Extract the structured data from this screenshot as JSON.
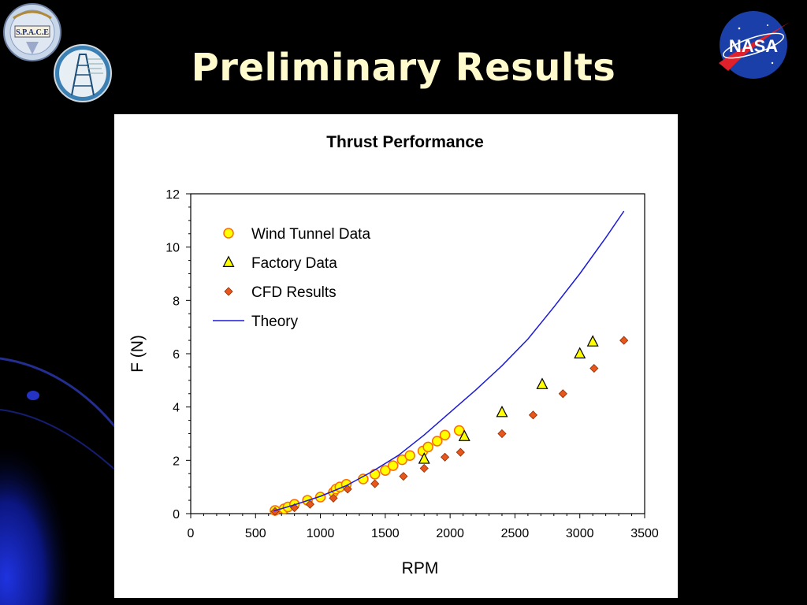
{
  "slide": {
    "title": "Preliminary Results",
    "logos": {
      "left_top": {
        "name": "space-seal",
        "text": "S.P.A.C.E"
      },
      "left_bottom": {
        "name": "tower-seal"
      },
      "right": {
        "name": "nasa-meatball",
        "text": "NASA"
      }
    },
    "colors": {
      "title": "#fffbcc",
      "background": "#000000",
      "swoosh": "#1a2ccf"
    }
  },
  "chart_data": {
    "type": "scatter",
    "title": "Thrust Performance",
    "xlabel": "RPM",
    "ylabel": "F (N)",
    "xlim": [
      0,
      3500
    ],
    "ylim": [
      0,
      12
    ],
    "xticks": [
      0,
      500,
      1000,
      1500,
      2000,
      2500,
      3000,
      3500
    ],
    "yticks": [
      0,
      2,
      4,
      6,
      8,
      10,
      12
    ],
    "grid": false,
    "legend_position": "top-left",
    "series": [
      {
        "name": "Wind Tunnel Data",
        "marker": "circle",
        "fill": "#ffff00",
        "stroke": "#ff6a00",
        "x": [
          650,
          720,
          750,
          800,
          900,
          1000,
          1100,
          1120,
          1150,
          1200,
          1330,
          1420,
          1500,
          1560,
          1630,
          1690,
          1790,
          1830,
          1900,
          1960,
          2070
        ],
        "y": [
          0.12,
          0.18,
          0.25,
          0.35,
          0.5,
          0.62,
          0.8,
          0.92,
          1.0,
          1.1,
          1.3,
          1.48,
          1.62,
          1.8,
          2.02,
          2.18,
          2.35,
          2.5,
          2.72,
          2.95,
          3.12
        ]
      },
      {
        "name": "Factory Data",
        "marker": "triangle",
        "fill": "#ffff00",
        "stroke": "#000000",
        "x": [
          1800,
          2110,
          2400,
          2710,
          3000,
          3100
        ],
        "y": [
          2.05,
          2.9,
          3.8,
          4.85,
          6.0,
          6.45
        ]
      },
      {
        "name": "CFD Results",
        "marker": "diamond",
        "fill": "#e8561c",
        "stroke": "#8a2d00",
        "x": [
          650,
          800,
          920,
          1100,
          1210,
          1420,
          1640,
          1800,
          1960,
          2080,
          2400,
          2640,
          2870,
          3110,
          3340
        ],
        "y": [
          0.08,
          0.22,
          0.35,
          0.58,
          0.92,
          1.12,
          1.4,
          1.7,
          2.12,
          2.3,
          3.0,
          3.7,
          4.5,
          5.45,
          6.5
        ]
      },
      {
        "name": "Theory",
        "marker": "line",
        "stroke": "#1a1adb",
        "x": [
          640,
          800,
          1000,
          1200,
          1400,
          1600,
          1800,
          2000,
          2200,
          2400,
          2600,
          2800,
          3000,
          3200,
          3340
        ],
        "y": [
          0.1,
          0.33,
          0.65,
          1.05,
          1.58,
          2.18,
          2.95,
          3.8,
          4.65,
          5.55,
          6.55,
          7.75,
          9.0,
          10.35,
          11.35
        ]
      }
    ]
  }
}
